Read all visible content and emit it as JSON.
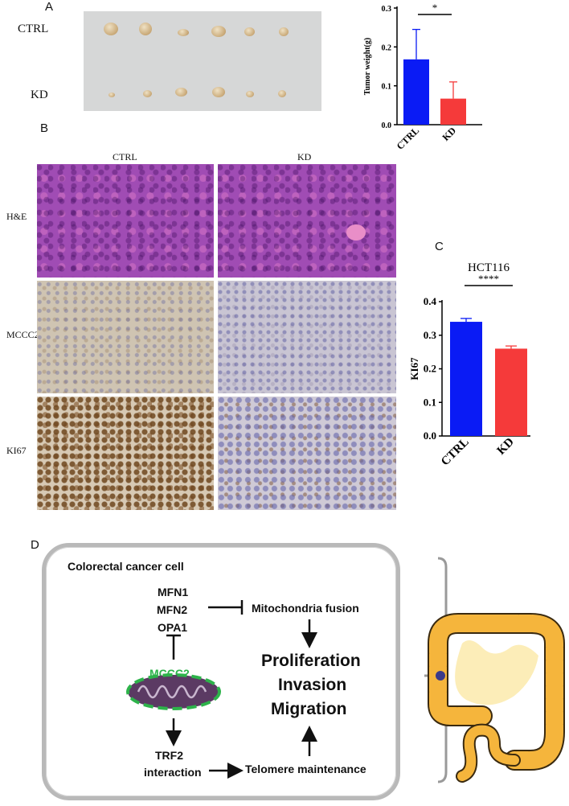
{
  "panels": {
    "a": "A",
    "b": "B",
    "c": "C",
    "d": "D"
  },
  "panel_a": {
    "row_ctrl": "CTRL",
    "row_kd": "KD"
  },
  "panel_b": {
    "col_ctrl": "CTRL",
    "col_kd": "KD",
    "row_he": "H&E",
    "row_mccc2": "MCCC2",
    "row_ki67": "KI67"
  },
  "diagram": {
    "title": "Colorectal cancer cell",
    "genes": [
      "MFN1",
      "MFN2",
      "OPA1"
    ],
    "fusion": "Mitochondria fusion",
    "mccc2": "MCCC2",
    "outcomes": [
      "Proliferation",
      "Invasion",
      "Migration"
    ],
    "trf2_line1": "TRF2",
    "trf2_line2": "interaction",
    "telomere": "Telomere maintenance"
  },
  "colors": {
    "ctrl": "#0a1bf5",
    "kd": "#f53a3a",
    "mccc2_green": "#2db34a",
    "mito_purple": "#5b3a63"
  },
  "chart_data": [
    {
      "type": "bar",
      "title": "",
      "xlabel": "",
      "ylabel": "Tumor weight(g)",
      "categories": [
        "CTRL",
        "KD"
      ],
      "values": [
        0.168,
        0.067
      ],
      "error": [
        0.077,
        0.043
      ],
      "ylim": [
        0,
        0.3
      ],
      "yticks": [
        "0.0",
        "0.1",
        "0.2",
        "0.3"
      ],
      "significance": "*"
    },
    {
      "type": "bar",
      "title": "HCT116",
      "xlabel": "",
      "ylabel": "KI67",
      "categories": [
        "CTRL",
        "KD"
      ],
      "values": [
        0.34,
        0.26
      ],
      "error": [
        0.01,
        0.008
      ],
      "ylim": [
        0,
        0.4
      ],
      "yticks": [
        "0.0",
        "0.1",
        "0.2",
        "0.3",
        "0.4"
      ],
      "significance": "****"
    }
  ]
}
